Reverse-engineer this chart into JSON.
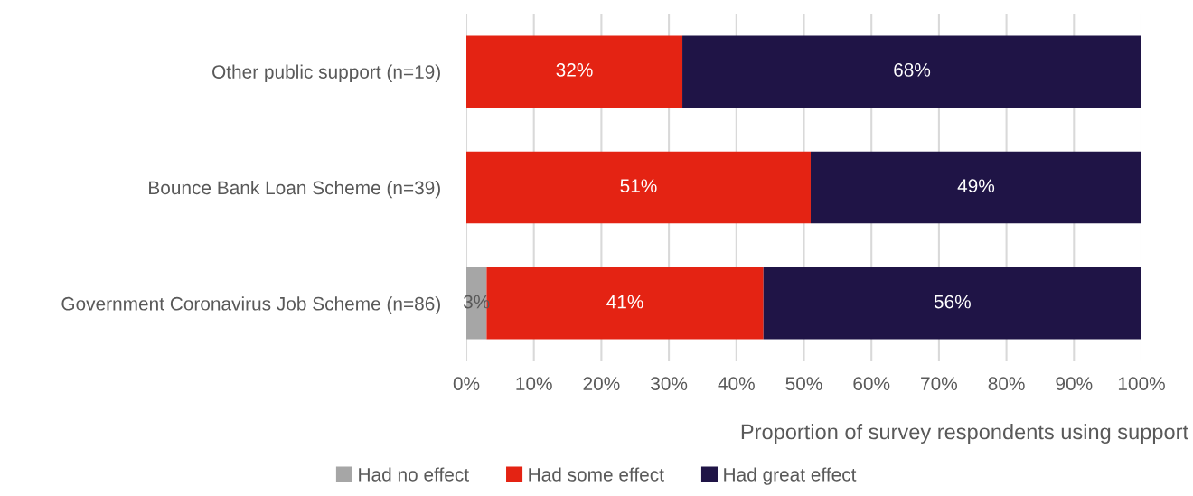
{
  "chart_data": {
    "type": "bar",
    "orientation": "horizontal",
    "stacked": true,
    "categories": [
      "Other public support (n=19)",
      "Bounce Bank Loan Scheme (n=39)",
      "Government Coronavirus Job Scheme (n=86)"
    ],
    "series": [
      {
        "name": "Had no effect",
        "color": "#a6a6a6",
        "values": [
          0,
          0,
          3
        ],
        "value_labels": [
          null,
          null,
          "3%"
        ]
      },
      {
        "name": "Had some effect",
        "color": "#e42313",
        "values": [
          32,
          51,
          41
        ],
        "value_labels": [
          "32%",
          "51%",
          "41%"
        ]
      },
      {
        "name": "Had great effect",
        "color": "#1f1446",
        "values": [
          68,
          49,
          56
        ],
        "value_labels": [
          "68%",
          "49%",
          "56%"
        ]
      }
    ],
    "xlabel": "Proportion of survey respondents using support",
    "xlim": [
      0,
      100
    ],
    "xticks": [
      {
        "value": 0,
        "label": "0%"
      },
      {
        "value": 10,
        "label": "10%"
      },
      {
        "value": 20,
        "label": "20%"
      },
      {
        "value": 30,
        "label": "30%"
      },
      {
        "value": 40,
        "label": "40%"
      },
      {
        "value": 50,
        "label": "50%"
      },
      {
        "value": 60,
        "label": "60%"
      },
      {
        "value": 70,
        "label": "70%"
      },
      {
        "value": 80,
        "label": "80%"
      },
      {
        "value": 90,
        "label": "90%"
      },
      {
        "value": 100,
        "label": "100%"
      }
    ],
    "grid": "x",
    "legend": "bottom"
  }
}
